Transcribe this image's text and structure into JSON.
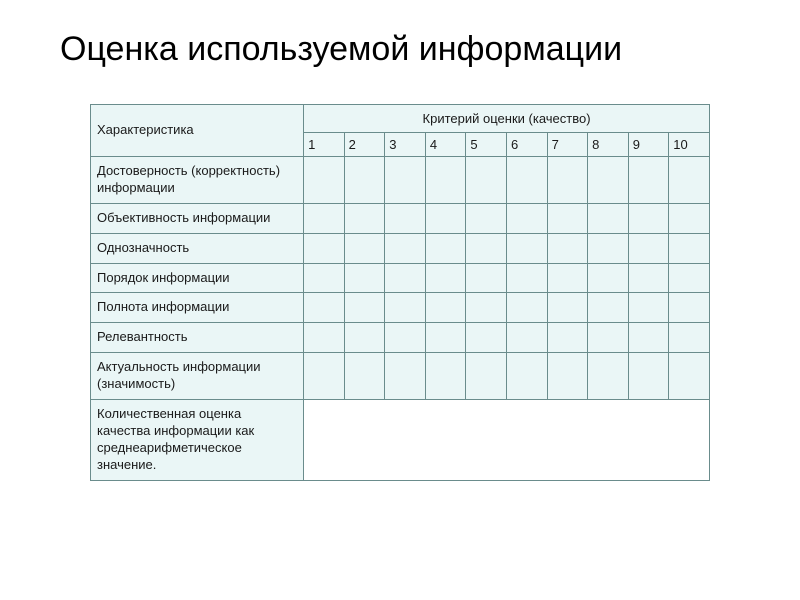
{
  "title": "Оценка используемой информации",
  "table": {
    "header": {
      "characteristic": "Характеристика",
      "criteria": "Критерий оценки (качество)",
      "scale": [
        "1",
        "2",
        "3",
        "4",
        "5",
        "6",
        "7",
        "8",
        "9",
        "10"
      ]
    },
    "rows": [
      "Достоверность (корректность) информации",
      "Объективность информации",
      "Однозначность",
      "Порядок информации",
      "Полнота информации",
      "Релевантность",
      "Актуальность информации (значимость)"
    ],
    "summary": "Количественная оценка качества информации как среднеарифметическое значение."
  },
  "style": {
    "type": "table",
    "background_color": "#ffffff",
    "table_bg": "#eaf6f6",
    "border_color": "#6a8c8c",
    "title_font": "Comic Sans MS",
    "title_fontsize": 34,
    "cell_fontsize": 13,
    "text_color": "#1a1a1a",
    "col_widths": {
      "characteristic": 210,
      "number": 40
    },
    "summary_bg": "#ffffff"
  }
}
